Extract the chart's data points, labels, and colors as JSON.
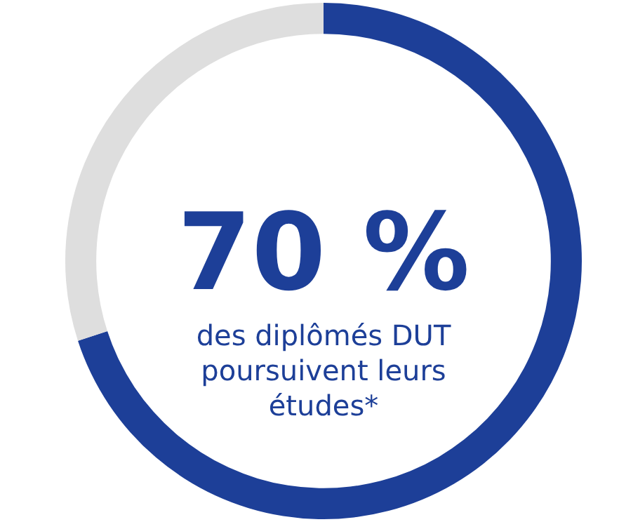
{
  "chart_data": {
    "type": "donut",
    "categories": [
      null,
      null
    ],
    "values": [
      70,
      30
    ],
    "colors": [
      "#1d3f98",
      "#dedede"
    ],
    "value_labels": [
      "70 %",
      null
    ],
    "annotations": [
      "des diplômés DUT poursuivent leurs études*"
    ]
  }
}
